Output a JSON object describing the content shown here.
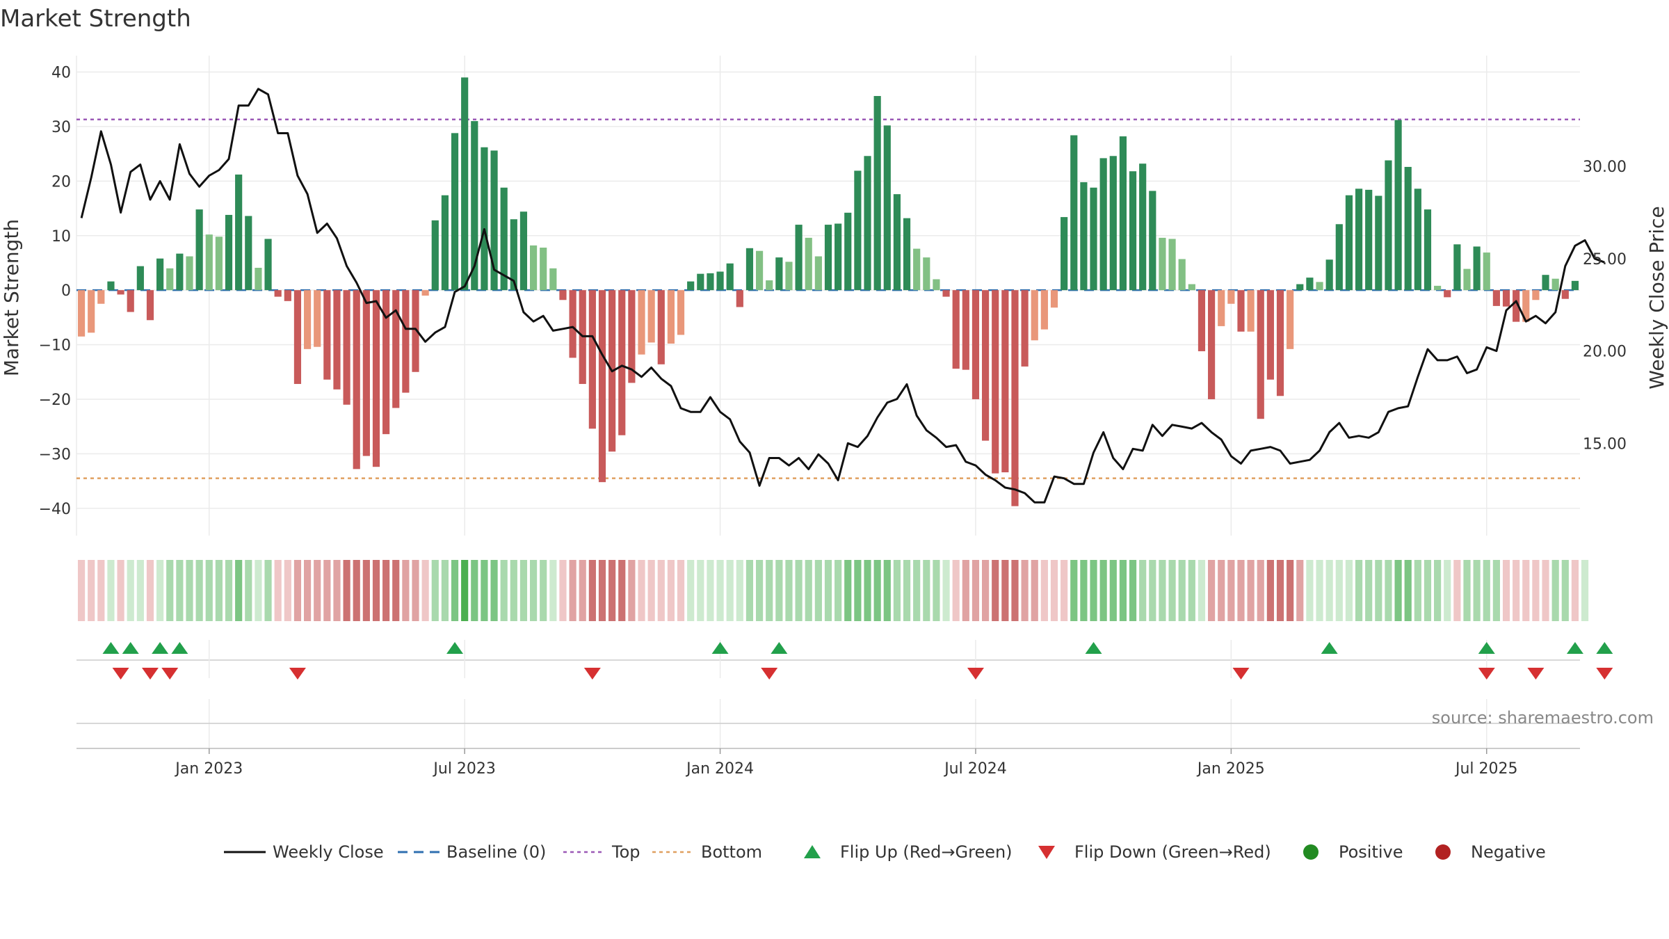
{
  "chart_data": {
    "type": "bar",
    "title": "Market Strength",
    "ylabel_left": "Market Strength",
    "ylabel_right": "Weekly Close Price",
    "source": "source: sharemaestro.com",
    "ylim_left": [
      -45,
      43
    ],
    "yticks_left": [
      40,
      30,
      20,
      10,
      0,
      -10,
      -20,
      -30,
      -40
    ],
    "ytick_labels_left": [
      "40",
      "30",
      "20",
      "10",
      "0",
      "−10",
      "−20",
      "−30",
      "−40"
    ],
    "ylim_right": [
      10.0,
      36.0
    ],
    "yticks_right": [
      30,
      25,
      20,
      15
    ],
    "ytick_labels_right": [
      "30.00",
      "25.00",
      "20.00",
      "15.00"
    ],
    "top_line": 31.3,
    "bottom_line": -34.5,
    "baseline": 0,
    "x_ticks": [
      {
        "label": "Jan 2023",
        "week": 13.5
      },
      {
        "label": "Jul 2023",
        "week": 39.5
      },
      {
        "label": "Jan 2024",
        "week": 65.5
      },
      {
        "label": "Jul 2024",
        "week": 91.5
      },
      {
        "label": "Jan 2025",
        "week": 117.5
      },
      {
        "label": "Jul 2025",
        "week": 143.5
      }
    ],
    "strength": [
      -8.5,
      -7.8,
      -2.5,
      1.6,
      -0.8,
      -4,
      4.4,
      -5.5,
      5.8,
      4,
      6.7,
      6.2,
      14.8,
      10.2,
      9.8,
      13.8,
      21.2,
      13.6,
      4.1,
      9.4,
      -1.2,
      -2,
      -17.2,
      -10.8,
      -10.4,
      -16.4,
      -18.2,
      -21,
      -32.8,
      -30.4,
      -32.4,
      -26.4,
      -21.6,
      -18.8,
      -15,
      -1,
      12.8,
      17.4,
      28.8,
      39,
      31,
      26.2,
      25.6,
      18.8,
      13,
      14.4,
      8.2,
      7.8,
      4,
      -1.8,
      -12.4,
      -17.2,
      -25.4,
      -35.2,
      -29.6,
      -26.6,
      -17,
      -11.8,
      -9.6,
      -13.6,
      -9.8,
      -8.2,
      1.6,
      3,
      3.1,
      3.4,
      4.9,
      -3.1,
      7.7,
      7.2,
      1.8,
      6,
      5.2,
      12,
      9.6,
      6.2,
      12,
      12.2,
      14.2,
      21.9,
      24.6,
      35.6,
      30.2,
      17.6,
      13.2,
      7.6,
      6,
      2,
      -1.2,
      -14.4,
      -14.6,
      -20,
      -27.6,
      -33.6,
      -33.4,
      -39.6,
      -14,
      -9.2,
      -7.2,
      -3.2,
      13.4,
      28.4,
      19.8,
      18.8,
      24.2,
      24.6,
      28.2,
      21.8,
      23.2,
      18.2,
      9.6,
      9.4,
      5.7,
      1.1,
      -11.2,
      -20,
      -6.6,
      -2.5,
      -7.6,
      -7.6,
      -23.6,
      -16.4,
      -19.4,
      -10.8,
      1.1,
      2.3,
      1.5,
      5.6,
      12.1,
      17.4,
      18.6,
      18.4,
      17.3,
      23.8,
      31.2,
      22.6,
      18.6,
      14.8,
      0.8,
      -1.3,
      8.4,
      3.9,
      8,
      6.9,
      -2.9,
      -3,
      -5.8,
      -5.8,
      -1.8,
      2.8,
      2.1,
      -1.6,
      1.7
    ],
    "weekly_close": [
      27.2,
      29.4,
      31.9,
      30.1,
      27.5,
      29.7,
      30.1,
      28.2,
      29.2,
      28.2,
      31.2,
      29.6,
      28.9,
      29.5,
      29.8,
      30.4,
      33.3,
      33.3,
      34.2,
      33.9,
      31.8,
      31.8,
      29.5,
      28.5,
      26.4,
      26.9,
      26.1,
      24.6,
      23.7,
      22.6,
      22.7,
      21.8,
      22.2,
      21.2,
      21.2,
      20.5,
      21.0,
      21.3,
      23.2,
      23.5,
      24.6,
      26.6,
      24.4,
      24.1,
      23.8,
      22.1,
      21.6,
      21.9,
      21.1,
      21.2,
      21.3,
      20.8,
      20.8,
      19.8,
      18.9,
      19.2,
      19.0,
      18.6,
      19.1,
      18.5,
      18.1,
      16.9,
      16.7,
      16.7,
      17.5,
      16.7,
      16.3,
      15.1,
      14.5,
      12.7,
      14.2,
      14.2,
      13.8,
      14.2,
      13.6,
      14.4,
      13.9,
      13.0,
      15.0,
      14.8,
      15.4,
      16.4,
      17.2,
      17.4,
      18.2,
      16.5,
      15.7,
      15.3,
      14.8,
      14.9,
      14.0,
      13.8,
      13.3,
      13.0,
      12.6,
      12.5,
      12.3,
      11.8,
      11.8,
      13.2,
      13.1,
      12.8,
      12.8,
      14.5,
      15.6,
      14.2,
      13.6,
      14.7,
      14.6,
      16.0,
      15.4,
      16.0,
      15.9,
      15.8,
      16.1,
      15.6,
      15.2,
      14.3,
      13.9,
      14.6,
      14.7,
      14.8,
      14.6,
      13.9,
      14.0,
      14.1,
      14.6,
      15.6,
      16.1,
      15.3,
      15.4,
      15.3,
      15.6,
      16.7,
      16.9,
      17.0,
      18.6,
      20.1,
      19.5,
      19.5,
      19.7,
      18.8,
      19.0,
      20.2,
      20.0,
      22.2,
      22.7,
      21.6,
      21.9,
      21.5,
      22.1,
      24.6,
      25.7,
      26.0,
      25.0,
      24.8
    ],
    "regime_intensity": [
      -1,
      -1,
      -1,
      1,
      -1,
      1,
      1,
      -1,
      1,
      2,
      2,
      2,
      2,
      2,
      2,
      2,
      3,
      2,
      1,
      2,
      -1,
      -1,
      -2,
      -2,
      -2,
      -2,
      -2,
      -3,
      -3,
      -3,
      -3,
      -3,
      -3,
      -2,
      -2,
      -1,
      2,
      2,
      3,
      4,
      3,
      3,
      3,
      2,
      2,
      2,
      2,
      2,
      1,
      -1,
      -2,
      -2,
      -3,
      -3,
      -3,
      -3,
      -2,
      -1,
      -1,
      -1,
      -1,
      -1,
      1,
      1,
      1,
      1,
      1,
      1,
      2,
      2,
      2,
      2,
      2,
      2,
      2,
      2,
      2,
      2,
      3,
      3,
      3,
      3,
      3,
      2,
      2,
      2,
      2,
      2,
      1,
      -1,
      -2,
      -2,
      -2,
      -3,
      -3,
      -3,
      -2,
      -2,
      -1,
      -1,
      -1,
      3,
      3,
      3,
      3,
      3,
      3,
      3,
      2,
      2,
      2,
      2,
      2,
      2,
      1,
      -2,
      -2,
      -2,
      -2,
      -2,
      -2,
      -3,
      -3,
      -3,
      -2,
      1,
      1,
      1,
      1,
      1,
      2,
      2,
      2,
      2,
      3,
      3,
      2,
      2,
      2,
      1,
      -1,
      2,
      2,
      2,
      2,
      -1,
      -1,
      -1,
      -1,
      -1,
      2,
      2,
      -1,
      1
    ],
    "flip_up_weeks": [
      3,
      5,
      8,
      10,
      38,
      65,
      71,
      103,
      127,
      143,
      152,
      155
    ],
    "flip_down_weeks": [
      4,
      7,
      9,
      22,
      52,
      70,
      91,
      118,
      143,
      148,
      155
    ],
    "legend": [
      {
        "key": "close",
        "label": "Weekly Close",
        "color": "#111111"
      },
      {
        "key": "baseline",
        "label": "Baseline (0)",
        "color": "#2f6fb0"
      },
      {
        "key": "top",
        "label": "Top",
        "color": "#9b59b6"
      },
      {
        "key": "bottom",
        "label": "Bottom",
        "color": "#e0a060"
      },
      {
        "key": "flipup",
        "label": "Flip Up (Red→Green)",
        "color": "#22a04b"
      },
      {
        "key": "flipdown",
        "label": "Flip Down (Green→Red)",
        "color": "#d63031"
      },
      {
        "key": "positive",
        "label": "Positive",
        "color": "#228b22"
      },
      {
        "key": "negative",
        "label": "Negative",
        "color": "#b22222"
      }
    ],
    "colors": {
      "bar_pos_strong": "#2e8b57",
      "bar_pos_weak": "#82c084",
      "bar_neg_strong": "#c85a5a",
      "bar_neg_weak": "#e9977a",
      "grid": "#ebebeb",
      "axis": "#cccccc"
    }
  }
}
